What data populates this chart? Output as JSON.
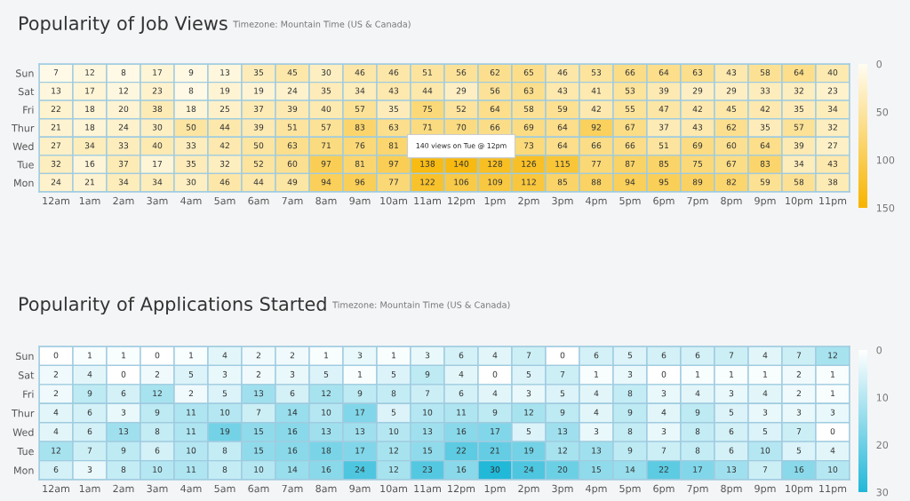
{
  "chart_data": [
    {
      "type": "heatmap",
      "title": "Popularity of Job Views",
      "subtitle": "Timezone: Mountain Time (US & Canada)",
      "categories": [
        "12am",
        "1am",
        "2am",
        "3am",
        "4am",
        "5am",
        "6am",
        "7am",
        "8am",
        "9am",
        "10am",
        "11am",
        "12pm",
        "1pm",
        "2pm",
        "3pm",
        "4pm",
        "5pm",
        "6pm",
        "7pm",
        "8pm",
        "9pm",
        "10pm",
        "11pm"
      ],
      "y_categories": [
        "Sun",
        "Sat",
        "Fri",
        "Thur",
        "Wed",
        "Tue",
        "Mon"
      ],
      "cells": [
        [
          7,
          12,
          8,
          17,
          9,
          13,
          35,
          45,
          30,
          46,
          46,
          51,
          56,
          62,
          65,
          46,
          53,
          66,
          64,
          63,
          43,
          58,
          64,
          40
        ],
        [
          13,
          17,
          12,
          23,
          8,
          19,
          19,
          24,
          35,
          34,
          43,
          44,
          29,
          56,
          63,
          43,
          41,
          53,
          39,
          29,
          29,
          33,
          32,
          23
        ],
        [
          22,
          18,
          20,
          38,
          18,
          25,
          37,
          39,
          40,
          57,
          35,
          75,
          52,
          64,
          58,
          59,
          42,
          55,
          47,
          42,
          45,
          42,
          35,
          34
        ],
        [
          21,
          18,
          24,
          30,
          50,
          44,
          39,
          51,
          57,
          83,
          63,
          71,
          70,
          66,
          69,
          64,
          92,
          67,
          37,
          43,
          62,
          35,
          57,
          32
        ],
        [
          27,
          34,
          33,
          40,
          33,
          42,
          50,
          63,
          71,
          76,
          81,
          null,
          null,
          null,
          73,
          64,
          66,
          66,
          51,
          69,
          60,
          64,
          39,
          27
        ],
        [
          32,
          16,
          37,
          17,
          35,
          32,
          52,
          60,
          97,
          81,
          97,
          138,
          140,
          128,
          126,
          115,
          77,
          87,
          85,
          75,
          67,
          83,
          34,
          43
        ],
        [
          24,
          21,
          34,
          34,
          30,
          46,
          44,
          49,
          94,
          96,
          77,
          122,
          106,
          109,
          112,
          85,
          88,
          94,
          95,
          89,
          82,
          59,
          58,
          38
        ]
      ],
      "clim": [
        0,
        150
      ],
      "cticks": [
        0,
        50,
        100,
        150
      ],
      "colors": [
        "#fffdf2",
        "#f7b500"
      ],
      "data_labels": true,
      "annotations": [
        "140 views on Tue @ 12pm"
      ]
    },
    {
      "type": "heatmap",
      "title": "Popularity of Applications Started",
      "subtitle": "Timezone: Mountain Time (US & Canada)",
      "categories": [
        "12am",
        "1am",
        "2am",
        "3am",
        "4am",
        "5am",
        "6am",
        "7am",
        "8am",
        "9am",
        "10am",
        "11am",
        "12pm",
        "1pm",
        "2pm",
        "3pm",
        "4pm",
        "5pm",
        "6pm",
        "7pm",
        "8pm",
        "9pm",
        "10pm",
        "11pm"
      ],
      "y_categories": [
        "Sun",
        "Sat",
        "Fri",
        "Thur",
        "Wed",
        "Tue",
        "Mon"
      ],
      "cells": [
        [
          0,
          1,
          1,
          0,
          1,
          4,
          2,
          2,
          1,
          3,
          1,
          3,
          6,
          4,
          7,
          0,
          6,
          5,
          6,
          6,
          7,
          4,
          7,
          12
        ],
        [
          2,
          4,
          0,
          2,
          5,
          3,
          2,
          3,
          5,
          1,
          5,
          9,
          4,
          0,
          5,
          7,
          1,
          3,
          0,
          1,
          1,
          1,
          2,
          1
        ],
        [
          2,
          9,
          6,
          12,
          2,
          5,
          13,
          6,
          12,
          9,
          8,
          7,
          6,
          4,
          3,
          5,
          4,
          8,
          3,
          4,
          3,
          4,
          2,
          1
        ],
        [
          4,
          6,
          3,
          9,
          11,
          10,
          7,
          14,
          10,
          17,
          5,
          10,
          11,
          9,
          12,
          9,
          4,
          9,
          4,
          9,
          5,
          3,
          3,
          3
        ],
        [
          4,
          6,
          13,
          8,
          11,
          19,
          15,
          16,
          13,
          13,
          10,
          13,
          16,
          17,
          5,
          13,
          3,
          8,
          3,
          8,
          6,
          5,
          7,
          0
        ],
        [
          12,
          7,
          9,
          6,
          10,
          8,
          15,
          16,
          18,
          17,
          12,
          15,
          22,
          21,
          19,
          12,
          13,
          9,
          7,
          8,
          6,
          10,
          5,
          4
        ],
        [
          6,
          3,
          8,
          10,
          11,
          8,
          10,
          14,
          16,
          24,
          12,
          23,
          16,
          30,
          24,
          20,
          15,
          14,
          22,
          17,
          13,
          7,
          16,
          10
        ]
      ],
      "data_labels": true,
      "clim": [
        0,
        30
      ],
      "cticks": [
        0,
        10,
        20,
        30
      ],
      "colors": [
        "#ffffff",
        "#22b8d8"
      ]
    }
  ]
}
